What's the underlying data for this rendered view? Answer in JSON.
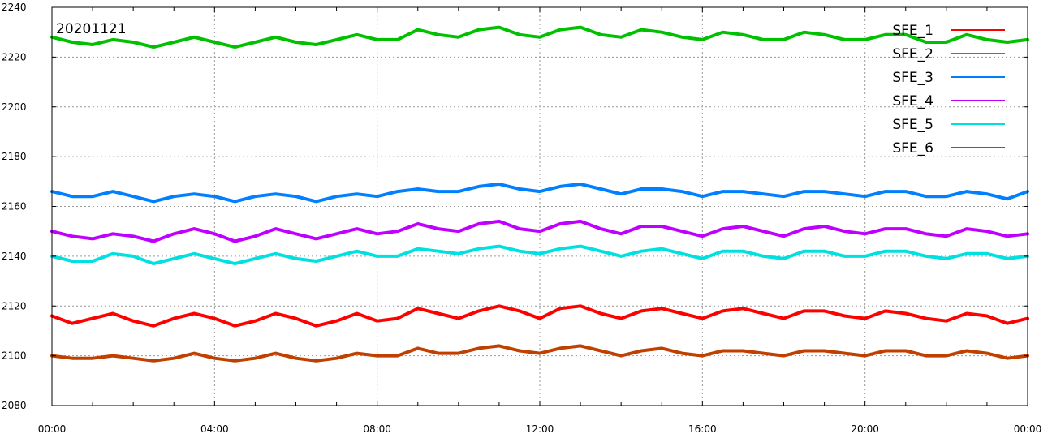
{
  "chart_data": {
    "type": "line",
    "title": "20201121",
    "xlabel": "",
    "ylabel": "",
    "xlim": [
      "00:00",
      "24:00"
    ],
    "ylim": [
      2080,
      2240
    ],
    "x_ticks": [
      "00:00",
      "04:00",
      "08:00",
      "12:00",
      "16:00",
      "20:00",
      "00:00"
    ],
    "y_ticks": [
      2080,
      2100,
      2120,
      2140,
      2160,
      2180,
      2200,
      2220,
      2240
    ],
    "grid": true,
    "legend_position": "top-right",
    "x_hours": [
      0,
      0.5,
      1,
      1.5,
      2,
      2.5,
      3,
      3.5,
      4,
      4.5,
      5,
      5.5,
      6,
      6.5,
      7,
      7.5,
      8,
      8.5,
      9,
      9.5,
      10,
      10.5,
      11,
      11.5,
      12,
      12.5,
      13,
      13.5,
      14,
      14.5,
      15,
      15.5,
      16,
      16.5,
      17,
      17.5,
      18,
      18.5,
      19,
      19.5,
      20,
      20.5,
      21,
      21.5,
      22,
      22.5,
      23,
      23.5,
      24
    ],
    "series": [
      {
        "name": "SFE_1",
        "color": "#ff0000",
        "values": [
          2116,
          2113,
          2115,
          2117,
          2114,
          2112,
          2115,
          2117,
          2115,
          2112,
          2114,
          2117,
          2115,
          2112,
          2114,
          2117,
          2114,
          2115,
          2119,
          2117,
          2115,
          2118,
          2120,
          2118,
          2115,
          2119,
          2120,
          2117,
          2115,
          2118,
          2119,
          2117,
          2115,
          2118,
          2119,
          2117,
          2115,
          2118,
          2118,
          2116,
          2115,
          2118,
          2117,
          2115,
          2114,
          2117,
          2116,
          2113,
          2115
        ]
      },
      {
        "name": "SFE_2",
        "color": "#00c000",
        "values": [
          2228,
          2226,
          2225,
          2227,
          2226,
          2224,
          2226,
          2228,
          2226,
          2224,
          2226,
          2228,
          2226,
          2225,
          2227,
          2229,
          2227,
          2227,
          2231,
          2229,
          2228,
          2231,
          2232,
          2229,
          2228,
          2231,
          2232,
          2229,
          2228,
          2231,
          2230,
          2228,
          2227,
          2230,
          2229,
          2227,
          2227,
          2230,
          2229,
          2227,
          2227,
          2229,
          2229,
          2226,
          2226,
          2229,
          2227,
          2226,
          2227
        ]
      },
      {
        "name": "SFE_3",
        "color": "#0080ff",
        "values": [
          2166,
          2164,
          2164,
          2166,
          2164,
          2162,
          2164,
          2165,
          2164,
          2162,
          2164,
          2165,
          2164,
          2162,
          2164,
          2165,
          2164,
          2166,
          2167,
          2166,
          2166,
          2168,
          2169,
          2167,
          2166,
          2168,
          2169,
          2167,
          2165,
          2167,
          2167,
          2166,
          2164,
          2166,
          2166,
          2165,
          2164,
          2166,
          2166,
          2165,
          2164,
          2166,
          2166,
          2164,
          2164,
          2166,
          2165,
          2163,
          2166
        ]
      },
      {
        "name": "SFE_4",
        "color": "#c000ff",
        "values": [
          2150,
          2148,
          2147,
          2149,
          2148,
          2146,
          2149,
          2151,
          2149,
          2146,
          2148,
          2151,
          2149,
          2147,
          2149,
          2151,
          2149,
          2150,
          2153,
          2151,
          2150,
          2153,
          2154,
          2151,
          2150,
          2153,
          2154,
          2151,
          2149,
          2152,
          2152,
          2150,
          2148,
          2151,
          2152,
          2150,
          2148,
          2151,
          2152,
          2150,
          2149,
          2151,
          2151,
          2149,
          2148,
          2151,
          2150,
          2148,
          2149
        ]
      },
      {
        "name": "SFE_5",
        "color": "#00e0e0",
        "values": [
          2140,
          2138,
          2138,
          2141,
          2140,
          2137,
          2139,
          2141,
          2139,
          2137,
          2139,
          2141,
          2139,
          2138,
          2140,
          2142,
          2140,
          2140,
          2143,
          2142,
          2141,
          2143,
          2144,
          2142,
          2141,
          2143,
          2144,
          2142,
          2140,
          2142,
          2143,
          2141,
          2139,
          2142,
          2142,
          2140,
          2139,
          2142,
          2142,
          2140,
          2140,
          2142,
          2142,
          2140,
          2139,
          2141,
          2141,
          2139,
          2140
        ]
      },
      {
        "name": "SFE_6",
        "color": "#c04000",
        "values": [
          2100,
          2099,
          2099,
          2100,
          2099,
          2098,
          2099,
          2101,
          2099,
          2098,
          2099,
          2101,
          2099,
          2098,
          2099,
          2101,
          2100,
          2100,
          2103,
          2101,
          2101,
          2103,
          2104,
          2102,
          2101,
          2103,
          2104,
          2102,
          2100,
          2102,
          2103,
          2101,
          2100,
          2102,
          2102,
          2101,
          2100,
          2102,
          2102,
          2101,
          2100,
          2102,
          2102,
          2100,
          2100,
          2102,
          2101,
          2099,
          2100
        ]
      }
    ]
  }
}
